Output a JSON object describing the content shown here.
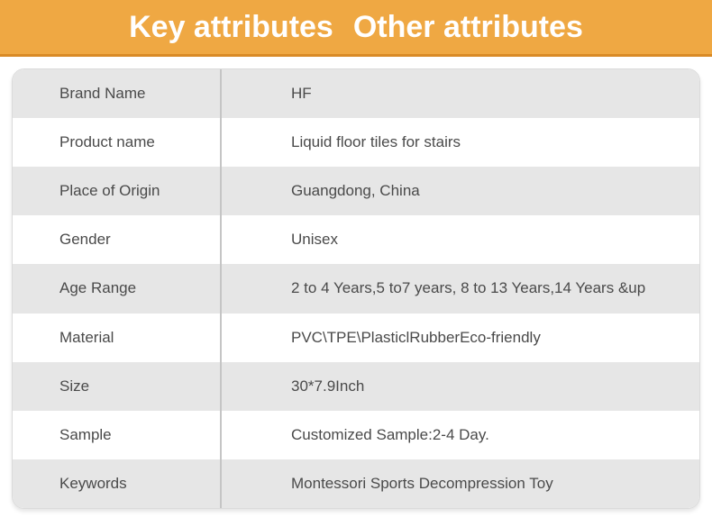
{
  "header": {
    "tabs": [
      {
        "label": "Key attributes"
      },
      {
        "label": "Other attributes"
      }
    ],
    "bg_color": "#EFA843",
    "border_color": "#D98A26",
    "text_color": "#FFFFFF"
  },
  "attributes_table": {
    "rows": [
      {
        "label": "Brand Name",
        "value": "HF"
      },
      {
        "label": "Product name",
        "value": "Liquid floor tiles for stairs"
      },
      {
        "label": "Place of Origin",
        "value": "Guangdong, China"
      },
      {
        "label": "Gender",
        "value": "Unisex"
      },
      {
        "label": "Age Range",
        "value": "2 to 4 Years,5 to7 years, 8 to 13 Years,14 Years &up"
      },
      {
        "label": "Material",
        "value": "PVC\\TPE\\PlasticlRubberEco-friendly"
      },
      {
        "label": "Size",
        "value": "30*7.9Inch"
      },
      {
        "label": "Sample",
        "value": "Customized Sample:2-4 Day."
      },
      {
        "label": "Keywords",
        "value": "Montessori Sports Decompression Toy"
      }
    ],
    "stripe_color": "#E6E6E6",
    "divider_color": "#C5C5C5",
    "text_color": "#4A4A4A"
  }
}
